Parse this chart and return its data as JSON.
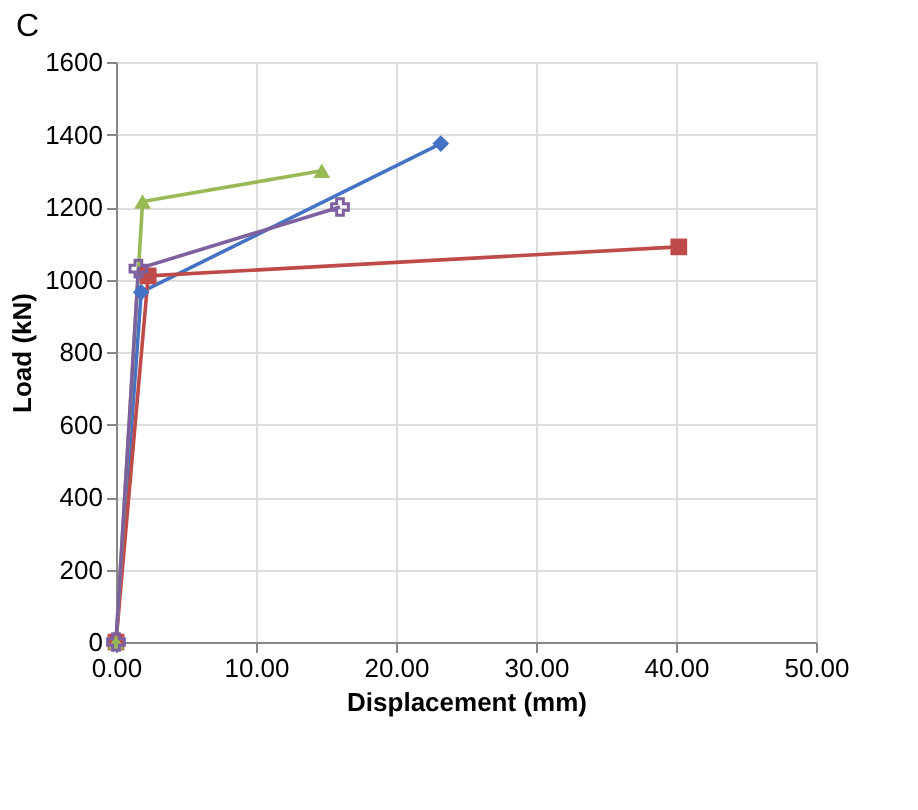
{
  "chart_data": {
    "type": "line",
    "title": "C",
    "xlabel": "Displacement (mm)",
    "ylabel": "Load (kN)",
    "xlim": [
      0,
      50
    ],
    "ylim": [
      0,
      1600
    ],
    "xticks": [
      {
        "value": 0,
        "label": "0.00"
      },
      {
        "value": 10,
        "label": "10.00"
      },
      {
        "value": 20,
        "label": "20.00"
      },
      {
        "value": 30,
        "label": "30.00"
      },
      {
        "value": 40,
        "label": "40.00"
      },
      {
        "value": 50,
        "label": "50.00"
      }
    ],
    "yticks": [
      0,
      200,
      400,
      600,
      800,
      1000,
      1200,
      1400,
      1600
    ],
    "grid": true,
    "series": [
      {
        "color": "#4472c4",
        "marker": "diamond",
        "x": [
          0,
          1.8,
          23.2
        ],
        "values": [
          0,
          965,
          1375
        ]
      },
      {
        "color": "#be4b48",
        "marker": "square",
        "x": [
          0,
          2.3,
          40.2
        ],
        "values": [
          0,
          1010,
          1090
        ]
      },
      {
        "color": "#98b954",
        "marker": "triangle",
        "x": [
          0,
          1.9,
          14.7
        ],
        "values": [
          0,
          1215,
          1300
        ]
      },
      {
        "color": "#7d60a0",
        "marker": "cross",
        "x": [
          0,
          1.6,
          16.0
        ],
        "values": [
          0,
          1030,
          1200
        ]
      }
    ]
  }
}
